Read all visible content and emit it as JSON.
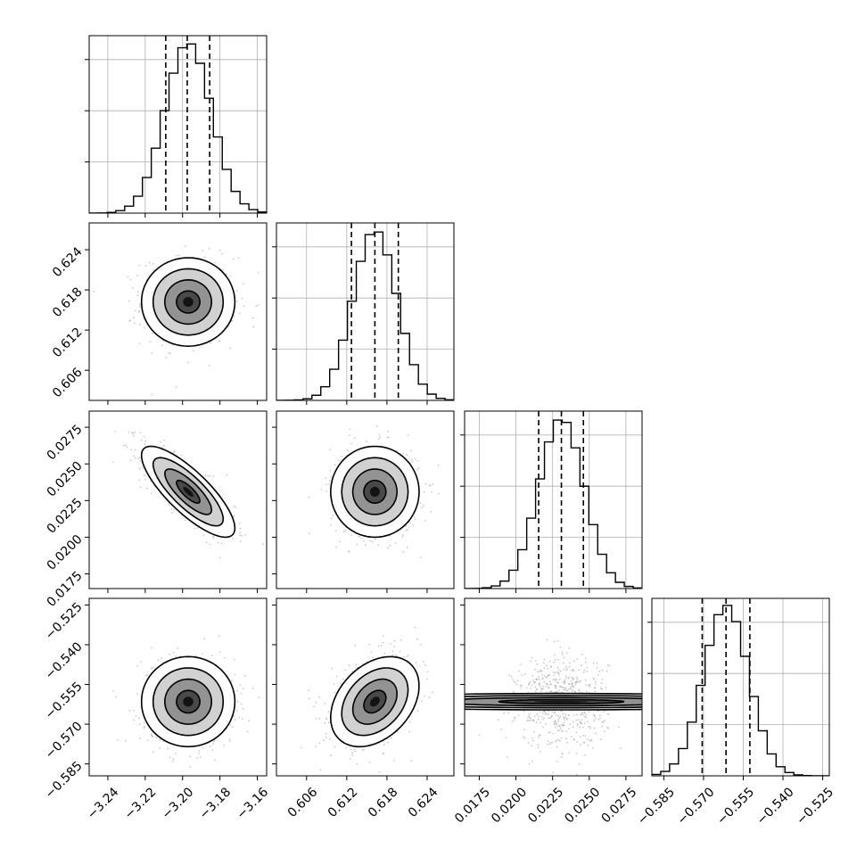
{
  "chart_data": {
    "type": "corner",
    "title": "",
    "parameters": [
      {
        "name": "",
        "range": [
          -3.25,
          -3.155
        ],
        "center": -3.197,
        "sigma": 0.0125,
        "quantiles": [
          -3.209,
          -3.1975,
          -3.1855
        ],
        "ticks": [
          "-3.24",
          "-3.22",
          "-3.20",
          "-3.18",
          "-3.16"
        ],
        "tick_values": [
          -3.24,
          -3.22,
          -3.2,
          -3.18,
          -3.16
        ]
      },
      {
        "name": "",
        "range": [
          0.6015,
          0.628
        ],
        "center": 0.6162,
        "sigma": 0.0033,
        "quantiles": [
          0.6127,
          0.6162,
          0.6197
        ],
        "ticks": [
          "0.606",
          "0.612",
          "0.618",
          "0.624"
        ],
        "tick_values": [
          0.606,
          0.612,
          0.618,
          0.624
        ]
      },
      {
        "name": "",
        "range": [
          0.0165,
          0.0286
        ],
        "center": 0.0231,
        "sigma": 0.00155,
        "quantiles": [
          0.02155,
          0.0231,
          0.0246
        ],
        "ticks": [
          "0.0175",
          "0.0200",
          "0.0225",
          "0.0250",
          "0.0275"
        ],
        "tick_values": [
          0.0175,
          0.02,
          0.0225,
          0.025,
          0.0275
        ]
      },
      {
        "name": "",
        "range": [
          -0.5895,
          -0.5225
        ],
        "center": -0.5615,
        "sigma": 0.0085,
        "quantiles": [
          -0.5705,
          -0.5615,
          -0.5525
        ],
        "ticks": [
          "-0.585",
          "-0.570",
          "-0.555",
          "-0.540",
          "-0.525"
        ],
        "tick_values": [
          -0.585,
          -0.57,
          -0.555,
          -0.54,
          -0.525
        ]
      }
    ],
    "correlations": [
      [
        1.0,
        0.0,
        -0.8,
        0.0
      ],
      [
        0.0,
        1.0,
        0.0,
        0.35
      ],
      [
        -0.8,
        0.0,
        1.0,
        0.0
      ],
      [
        0.0,
        0.35,
        0.0,
        1.0
      ]
    ],
    "contour_levels_sigma": [
      0.5,
      1.0,
      1.5,
      2.0
    ],
    "histogram_bins": 20,
    "grid": true,
    "colors": {
      "line": "#000000",
      "samples": "#9a9a9a",
      "grid": "#b0b0b0",
      "frame": "#000000"
    }
  }
}
